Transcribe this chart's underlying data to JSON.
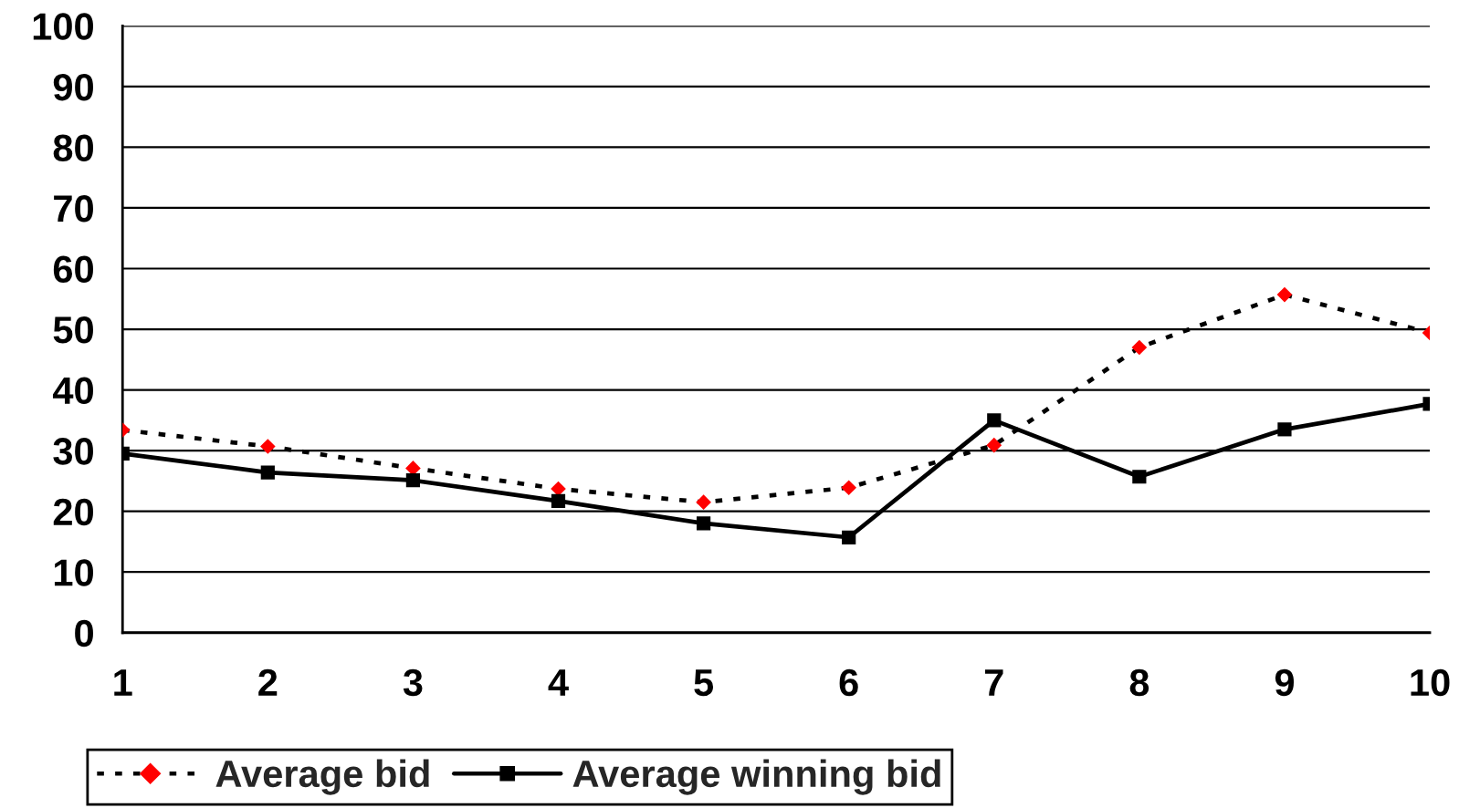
{
  "chart_data": {
    "type": "line",
    "x": [
      1,
      2,
      3,
      4,
      5,
      6,
      7,
      8,
      9,
      10
    ],
    "series": [
      {
        "name": "Average bid",
        "color": "#000000",
        "colors": [
          "#ff0000",
          "#ff0000",
          "#ff0000",
          "#ff0000",
          "#ff0000",
          "#ff0000",
          "#ff0000",
          "#ff0000",
          "#ff0000",
          "#ff0000"
        ],
        "values": [
          33.4,
          30.7,
          27.1,
          23.7,
          21.5,
          23.9,
          30.9,
          47.0,
          55.7,
          49.4
        ],
        "marker": "diamond",
        "line_style": "dotted"
      },
      {
        "name": "Average winning bid",
        "color": "#000000",
        "values": [
          29.5,
          26.4,
          25.1,
          21.7,
          18.0,
          15.7,
          35.0,
          25.7,
          33.5,
          37.7
        ],
        "marker": "square",
        "line_style": "solid"
      }
    ],
    "xlim": [
      1,
      10
    ],
    "xticks": [
      1,
      2,
      3,
      4,
      5,
      6,
      7,
      8,
      9,
      10
    ],
    "ylim": [
      0,
      100
    ],
    "yticks": [
      0,
      10,
      20,
      30,
      40,
      50,
      60,
      70,
      80,
      90,
      100
    ],
    "grid": "y",
    "legend": "bottom left"
  }
}
